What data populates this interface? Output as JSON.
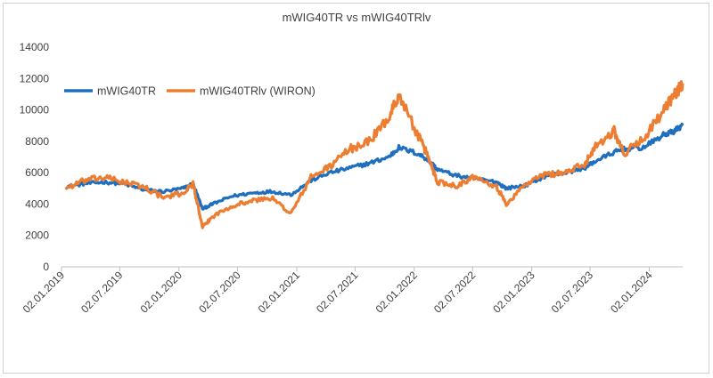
{
  "chart_data": {
    "type": "line",
    "title": "mWIG40TR vs mWIG40TRlv",
    "xlabel": "",
    "ylabel": "",
    "ylim": [
      0,
      14000
    ],
    "yticks": [
      "0",
      "2000",
      "4000",
      "6000",
      "8000",
      "10000",
      "12000",
      "14000"
    ],
    "xticks": [
      "02.01.2019",
      "02.07.2019",
      "02.01.2020",
      "02.07.2020",
      "02.01.2021",
      "02.07.2021",
      "02.01.2022",
      "02.07.2022",
      "02.01.2023",
      "02.07.2023",
      "02.01.2024"
    ],
    "grid": false,
    "legend_position": "top-left",
    "x": [
      "2019-01",
      "2019-03",
      "2019-05",
      "2019-07",
      "2019-09",
      "2019-11",
      "2020-01",
      "2020-02",
      "2020-03",
      "2020-04",
      "2020-06",
      "2020-08",
      "2020-10",
      "2020-12",
      "2021-02",
      "2021-04",
      "2021-06",
      "2021-08",
      "2021-10",
      "2021-11",
      "2022-01",
      "2022-02",
      "2022-03",
      "2022-05",
      "2022-07",
      "2022-09",
      "2022-10",
      "2022-12",
      "2023-02",
      "2023-04",
      "2023-06",
      "2023-07",
      "2023-09",
      "2023-10",
      "2023-12",
      "2024-02",
      "2024-03",
      "2024-04"
    ],
    "series": [
      {
        "name": "mWIG40TR",
        "color": "#1f6fbe",
        "values": [
          5100,
          5300,
          5400,
          5300,
          4900,
          4800,
          5000,
          5300,
          3700,
          4000,
          4500,
          4700,
          4800,
          4600,
          5500,
          6000,
          6300,
          6600,
          7000,
          7600,
          7200,
          6800,
          6200,
          5800,
          5600,
          5400,
          5000,
          5200,
          5800,
          6000,
          6300,
          6700,
          7300,
          7500,
          7600,
          8400,
          8600,
          9000
        ]
      },
      {
        "name": "mWIG40TRlv (WIRON)",
        "color": "#ed7d31",
        "values": [
          5000,
          5500,
          5700,
          5400,
          5100,
          4400,
          4700,
          5300,
          2500,
          3200,
          3900,
          4200,
          4400,
          3400,
          5700,
          6400,
          7500,
          8000,
          9500,
          11000,
          8300,
          7000,
          5400,
          5200,
          5800,
          5100,
          4000,
          5300,
          5900,
          6000,
          6500,
          7600,
          8700,
          7200,
          8200,
          9900,
          10800,
          11700
        ]
      }
    ]
  }
}
